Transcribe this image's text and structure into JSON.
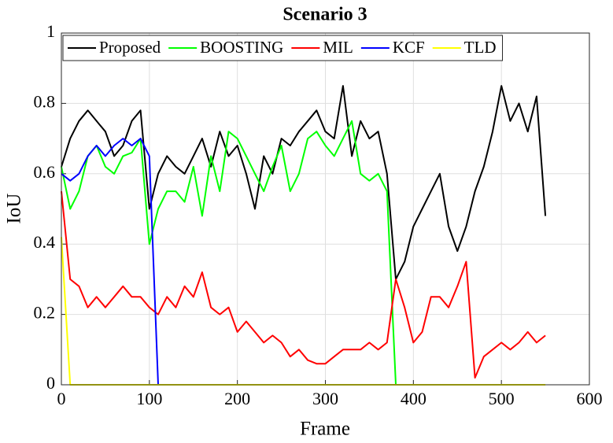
{
  "chart_data": {
    "type": "line",
    "title": "Scenario 3",
    "xlabel": "Frame",
    "ylabel": "IoU",
    "x": [
      0,
      10,
      20,
      30,
      40,
      50,
      60,
      70,
      80,
      90,
      100,
      110,
      120,
      130,
      140,
      150,
      160,
      170,
      180,
      190,
      200,
      210,
      220,
      230,
      240,
      250,
      260,
      270,
      280,
      290,
      300,
      310,
      320,
      330,
      340,
      350,
      360,
      370,
      380,
      390,
      400,
      410,
      420,
      430,
      440,
      450,
      460,
      470,
      480,
      490,
      500,
      510,
      520,
      530,
      540,
      550
    ],
    "series": [
      {
        "name": "Proposed",
        "color": "#000000",
        "values": [
          0.62,
          0.7,
          0.75,
          0.78,
          0.75,
          0.72,
          0.65,
          0.68,
          0.75,
          0.78,
          0.5,
          0.6,
          0.65,
          0.62,
          0.6,
          0.65,
          0.7,
          0.62,
          0.72,
          0.65,
          0.68,
          0.6,
          0.5,
          0.65,
          0.6,
          0.7,
          0.68,
          0.72,
          0.75,
          0.78,
          0.72,
          0.7,
          0.85,
          0.65,
          0.75,
          0.7,
          0.72,
          0.6,
          0.3,
          0.35,
          0.45,
          0.5,
          0.55,
          0.6,
          0.45,
          0.38,
          0.45,
          0.55,
          0.62,
          0.72,
          0.85,
          0.75,
          0.8,
          0.72,
          0.82,
          0.48
        ]
      },
      {
        "name": "BOOSTING",
        "color": "#00ff00",
        "values": [
          0.62,
          0.5,
          0.55,
          0.65,
          0.68,
          0.62,
          0.6,
          0.65,
          0.66,
          0.7,
          0.4,
          0.5,
          0.55,
          0.55,
          0.52,
          0.62,
          0.48,
          0.65,
          0.55,
          0.72,
          0.7,
          0.65,
          0.6,
          0.55,
          0.62,
          0.68,
          0.55,
          0.6,
          0.7,
          0.72,
          0.68,
          0.65,
          0.7,
          0.75,
          0.6,
          0.58,
          0.6,
          0.55,
          0,
          null,
          null,
          null,
          null,
          null,
          null,
          null,
          null,
          null,
          null,
          null,
          null,
          null,
          null,
          null,
          null,
          null
        ]
      },
      {
        "name": "MIL",
        "color": "#ff0000",
        "values": [
          0.55,
          0.3,
          0.28,
          0.22,
          0.25,
          0.22,
          0.25,
          0.28,
          0.25,
          0.25,
          0.22,
          0.2,
          0.25,
          0.22,
          0.28,
          0.25,
          0.32,
          0.22,
          0.2,
          0.22,
          0.15,
          0.18,
          0.15,
          0.12,
          0.14,
          0.12,
          0.08,
          0.1,
          0.07,
          0.06,
          0.06,
          0.08,
          0.1,
          0.1,
          0.1,
          0.12,
          0.1,
          0.12,
          0.3,
          0.22,
          0.12,
          0.15,
          0.25,
          0.25,
          0.22,
          0.28,
          0.35,
          0.02,
          0.08,
          0.1,
          0.12,
          0.1,
          0.12,
          0.15,
          0.12,
          0.14
        ]
      },
      {
        "name": "KCF",
        "color": "#0000ff",
        "values": [
          0.6,
          0.58,
          0.6,
          0.65,
          0.68,
          0.65,
          0.68,
          0.7,
          0.68,
          0.7,
          0.65,
          0,
          null,
          null,
          null,
          null,
          null,
          null,
          null,
          null,
          null,
          null,
          null,
          null,
          null,
          null,
          null,
          null,
          null,
          null,
          null,
          null,
          null,
          null,
          null,
          null,
          null,
          null,
          null,
          null,
          null,
          null,
          null,
          null,
          null,
          null,
          null,
          null,
          null,
          null,
          null,
          null,
          null,
          null,
          null,
          null
        ]
      },
      {
        "name": "TLD",
        "color": "#ffff00",
        "values": [
          0.42,
          0,
          0,
          0,
          0,
          0,
          0,
          0,
          0,
          0,
          0,
          0,
          0,
          0,
          0,
          0,
          0,
          0,
          0,
          0,
          0,
          0,
          0,
          0,
          0,
          0,
          0,
          0,
          0,
          0,
          0,
          0,
          0,
          0,
          0,
          0,
          0,
          0,
          0,
          0,
          0,
          0,
          0,
          0,
          0,
          0,
          0,
          0,
          0,
          0,
          0,
          0,
          0,
          0,
          0,
          0
        ]
      }
    ],
    "xlim": [
      0,
      600
    ],
    "xticks": [
      0,
      100,
      200,
      300,
      400,
      500,
      600
    ],
    "ylim": [
      0,
      1
    ],
    "yticks": [
      0,
      0.2,
      0.4,
      0.6,
      0.8,
      1
    ],
    "grid": true,
    "legend": "top-left"
  }
}
